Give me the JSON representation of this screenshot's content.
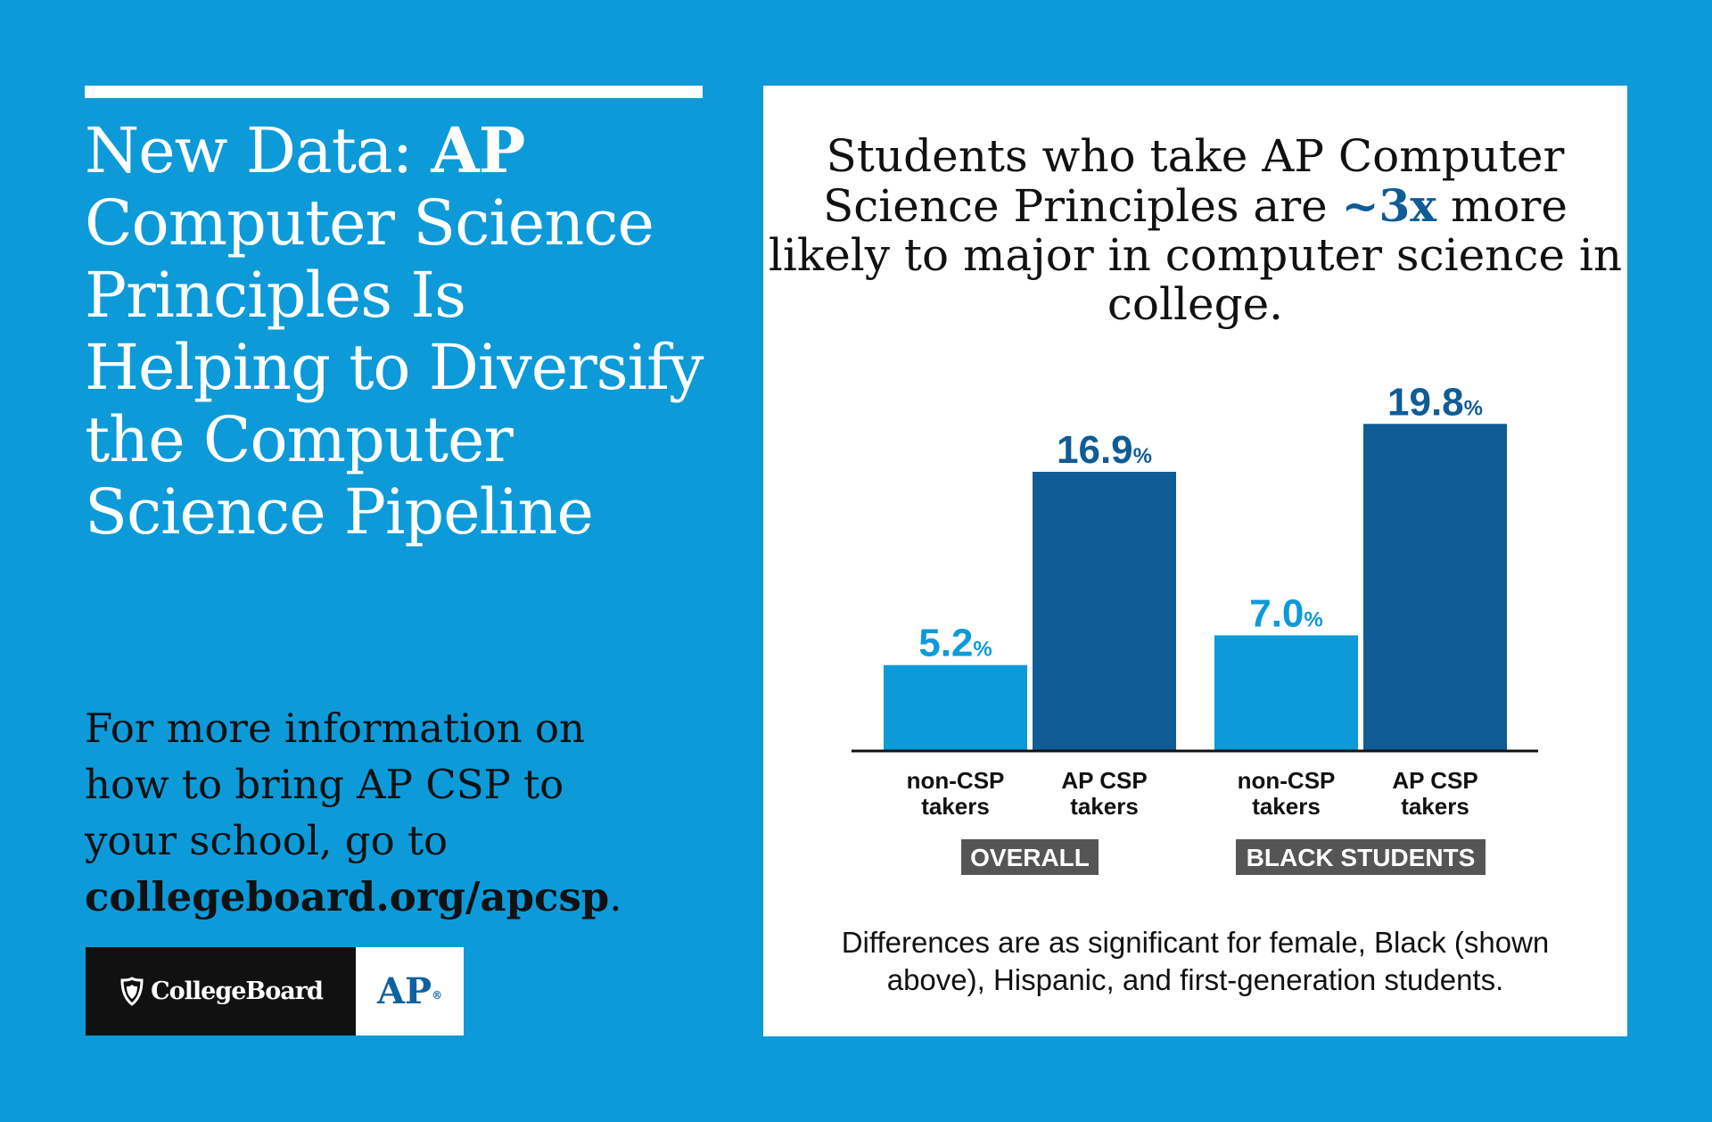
{
  "headline": {
    "prefix": "New Data: ",
    "bold": "AP",
    "rest": " Computer Science Principles Is Helping to Diversify the Computer Science Pipeline"
  },
  "info": {
    "text": "For more information on how to bring AP CSP to your school, go to ",
    "url": "collegeboard.org/apcsp",
    "end": "."
  },
  "logo": {
    "collegeboard": "CollegeBoard",
    "ap": "AP",
    "ap_mark": "®"
  },
  "chart_data": {
    "type": "bar",
    "title": {
      "part1": "Students who take AP Computer Science Principles are ",
      "emphasis": "~3x",
      "part2": " more likely to major in computer science in college."
    },
    "groups": [
      {
        "label": "OVERALL",
        "bars": [
          {
            "category": [
              "non-CSP",
              "takers"
            ],
            "value": 5.2,
            "value_label": "5.2",
            "color": "#0c9ad9"
          },
          {
            "category": [
              "AP CSP",
              "takers"
            ],
            "value": 16.9,
            "value_label": "16.9",
            "color": "#0f5c96"
          }
        ]
      },
      {
        "label": "BLACK STUDENTS",
        "bars": [
          {
            "category": [
              "non-CSP",
              "takers"
            ],
            "value": 7.0,
            "value_label": "7.0",
            "color": "#0c9ad9"
          },
          {
            "category": [
              "AP CSP",
              "takers"
            ],
            "value": 19.8,
            "value_label": "19.8",
            "color": "#0f5c96"
          }
        ]
      }
    ],
    "unit": "%",
    "ylim": [
      0,
      23
    ],
    "grid": false,
    "footnote": "Differences are as significant for female, Black (shown above), Hispanic, and first-generation students."
  },
  "colors": {
    "background": "#0c9ad9",
    "light_bar": "#0c9ad9",
    "dark_bar": "#0f5c96",
    "group_label_bg": "#555555",
    "text_dark": "#111111"
  }
}
